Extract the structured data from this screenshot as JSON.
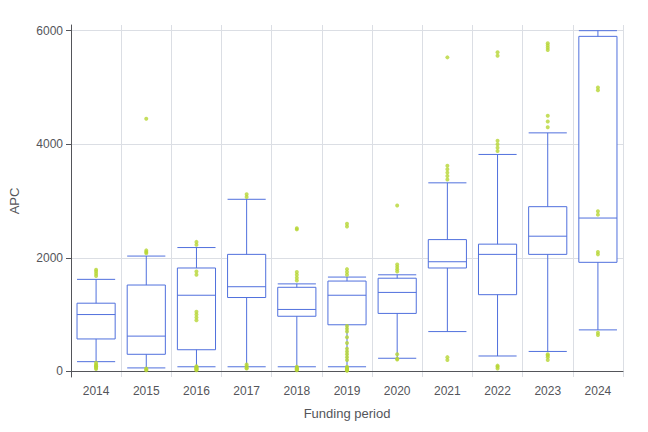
{
  "chart_data": {
    "type": "box",
    "title": "",
    "xlabel": "Funding period",
    "ylabel": "APC",
    "categories": [
      "2014",
      "2015",
      "2016",
      "2017",
      "2018",
      "2019",
      "2020",
      "2021",
      "2022",
      "2023",
      "2024"
    ],
    "boxes": [
      {
        "low": 170,
        "q1": 570,
        "median": 1000,
        "q3": 1200,
        "high": 1620
      },
      {
        "low": 60,
        "q1": 300,
        "median": 620,
        "q3": 1520,
        "high": 2030
      },
      {
        "low": 80,
        "q1": 380,
        "median": 1340,
        "q3": 1820,
        "high": 2180
      },
      {
        "low": 80,
        "q1": 1300,
        "median": 1490,
        "q3": 2060,
        "high": 3030
      },
      {
        "low": 80,
        "q1": 970,
        "median": 1090,
        "q3": 1480,
        "high": 1540
      },
      {
        "low": 80,
        "q1": 820,
        "median": 1340,
        "q3": 1590,
        "high": 1660
      },
      {
        "low": 230,
        "q1": 1020,
        "median": 1390,
        "q3": 1640,
        "high": 1700
      },
      {
        "low": 700,
        "q1": 1820,
        "median": 1930,
        "q3": 2320,
        "high": 3320
      },
      {
        "low": 270,
        "q1": 1350,
        "median": 2060,
        "q3": 2240,
        "high": 3820
      },
      {
        "low": 350,
        "q1": 2060,
        "median": 2380,
        "q3": 2900,
        "high": 4200
      },
      {
        "low": 730,
        "q1": 1920,
        "median": 2700,
        "q3": 5900,
        "high": 6000
      }
    ],
    "fliers": [
      [
        150,
        120,
        100,
        90,
        80,
        60,
        40,
        1680,
        1720,
        1760,
        1790
      ],
      [
        4450,
        2080,
        2100,
        2130,
        50,
        30,
        20
      ],
      [
        90,
        70,
        60,
        50,
        40,
        30,
        20,
        2230,
        2280,
        900,
        950,
        1000,
        1050,
        1700,
        1760
      ],
      [
        3070,
        3120,
        90,
        60,
        50,
        120
      ],
      [
        80,
        60,
        50,
        40,
        30,
        20,
        1600,
        1650,
        1700,
        1750,
        2500,
        2520
      ],
      [
        80,
        60,
        50,
        40,
        30,
        20,
        10,
        200,
        250,
        300,
        350,
        400,
        500,
        600,
        700,
        750,
        800,
        1700,
        1750,
        1800,
        2550,
        2600
      ],
      [
        1760,
        1800,
        1840,
        1880,
        220,
        210,
        300,
        2920
      ],
      [
        5530,
        3380,
        3440,
        3500,
        3560,
        3620,
        200,
        250
      ],
      [
        5560,
        5620,
        3880,
        3940,
        4000,
        4060,
        100,
        80,
        50
      ],
      [
        5780,
        5740,
        5700,
        5660,
        4300,
        4400,
        4500,
        300,
        280,
        250,
        200
      ],
      [
        4950,
        5000,
        2820,
        2760,
        2100,
        2060,
        680,
        640
      ]
    ],
    "ylim": [
      -100,
      6100
    ],
    "yticks": [
      0,
      2000,
      4000,
      6000
    ],
    "grid": true
  }
}
